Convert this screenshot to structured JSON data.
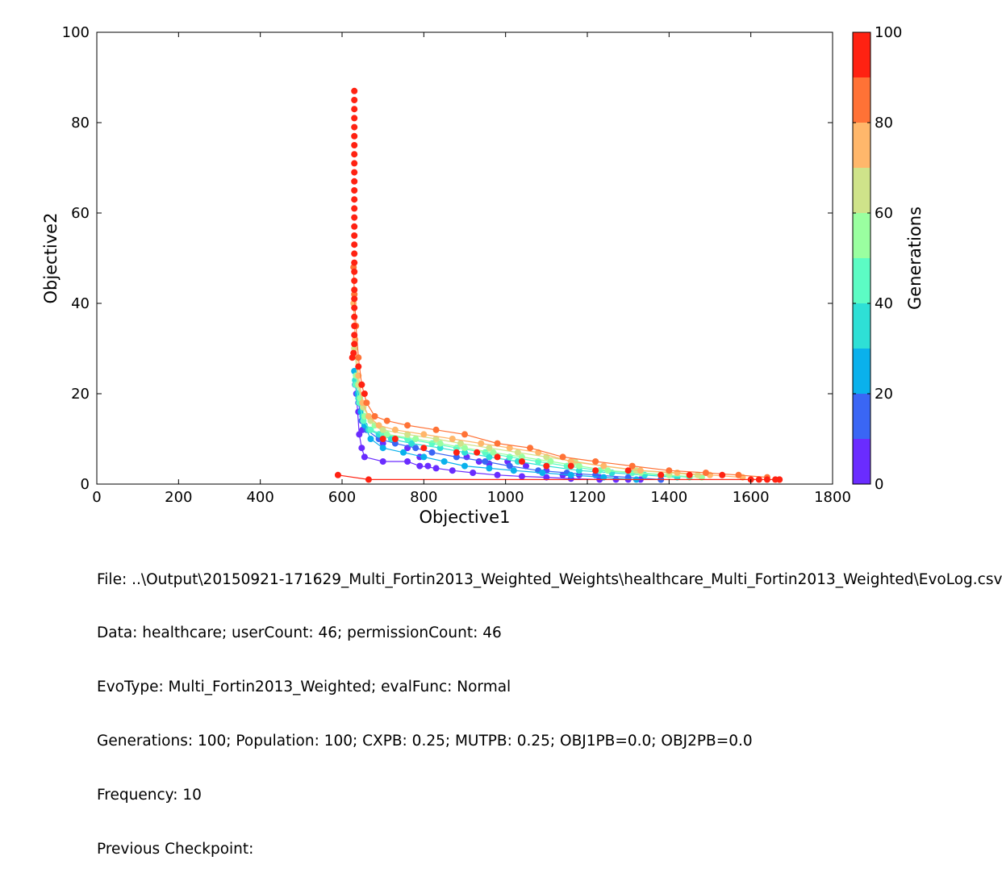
{
  "chart_data": {
    "type": "scatter",
    "xlabel": "Objective1",
    "ylabel": "Objective2",
    "xlim": [
      0,
      1800
    ],
    "ylim": [
      0,
      100
    ],
    "xticks": [
      0,
      200,
      400,
      600,
      800,
      1000,
      1200,
      1400,
      1600,
      1800
    ],
    "yticks": [
      0,
      20,
      40,
      60,
      80,
      100
    ],
    "grid": false,
    "colorbar": {
      "label": "Generations",
      "range": [
        0,
        100
      ],
      "ticks": [
        0,
        20,
        40,
        60,
        80,
        100
      ],
      "bins": [
        {
          "from": 0,
          "to": 10,
          "color": "#6a2cff"
        },
        {
          "from": 10,
          "to": 20,
          "color": "#3a66f5"
        },
        {
          "from": 20,
          "to": 30,
          "color": "#0ab1ec"
        },
        {
          "from": 30,
          "to": 40,
          "color": "#2ee0d6"
        },
        {
          "from": 40,
          "to": 50,
          "color": "#5cfcc4"
        },
        {
          "from": 50,
          "to": 60,
          "color": "#9affa0"
        },
        {
          "from": 60,
          "to": 70,
          "color": "#cfe38a"
        },
        {
          "from": 70,
          "to": 80,
          "color": "#ffb76b"
        },
        {
          "from": 80,
          "to": 90,
          "color": "#ff7236"
        },
        {
          "from": 90,
          "to": 100,
          "color": "#ff2212"
        }
      ]
    },
    "series": [
      {
        "generation": 5,
        "color": "#6a2cff",
        "line": true,
        "points": [
          [
            635,
            20
          ],
          [
            642,
            11
          ],
          [
            648,
            8
          ],
          [
            655,
            6
          ],
          [
            700,
            5
          ],
          [
            760,
            5
          ],
          [
            790,
            4
          ],
          [
            830,
            3.5
          ],
          [
            870,
            3
          ],
          [
            920,
            2.5
          ],
          [
            980,
            2
          ],
          [
            1040,
            1.7
          ],
          [
            1100,
            1.5
          ],
          [
            1160,
            1.2
          ],
          [
            1230,
            1
          ],
          [
            1300,
            1
          ]
        ]
      },
      {
        "generation": 12,
        "color": "#6a2cff",
        "line": false,
        "points": [
          [
            640,
            16
          ],
          [
            650,
            12
          ],
          [
            700,
            9
          ],
          [
            760,
            8
          ],
          [
            790,
            6
          ],
          [
            810,
            4
          ],
          [
            905,
            6
          ],
          [
            935,
            5
          ],
          [
            960,
            4.5
          ],
          [
            1005,
            5
          ],
          [
            1050,
            4
          ],
          [
            1100,
            3
          ],
          [
            1140,
            2
          ],
          [
            1180,
            2
          ],
          [
            1230,
            1.5
          ],
          [
            1270,
            1
          ],
          [
            1330,
            1
          ],
          [
            1380,
            1
          ]
        ]
      },
      {
        "generation": 15,
        "color": "#3a66f5",
        "line": true,
        "points": [
          [
            632,
            22
          ],
          [
            640,
            18
          ],
          [
            648,
            14
          ],
          [
            660,
            12
          ],
          [
            690,
            10
          ],
          [
            730,
            9
          ],
          [
            780,
            8
          ],
          [
            820,
            7
          ],
          [
            880,
            6
          ],
          [
            950,
            5
          ],
          [
            1010,
            4
          ],
          [
            1080,
            3
          ],
          [
            1150,
            2.5
          ],
          [
            1220,
            2
          ],
          [
            1300,
            1.5
          ],
          [
            1380,
            1
          ]
        ]
      },
      {
        "generation": 25,
        "color": "#0ab1ec",
        "line": true,
        "points": [
          [
            630,
            25
          ],
          [
            638,
            20
          ],
          [
            646,
            16
          ],
          [
            655,
            13
          ],
          [
            670,
            10
          ],
          [
            700,
            8
          ],
          [
            750,
            7
          ],
          [
            800,
            6
          ],
          [
            850,
            5
          ],
          [
            900,
            4
          ],
          [
            960,
            3.5
          ],
          [
            1020,
            3
          ],
          [
            1090,
            2.5
          ],
          [
            1160,
            2
          ],
          [
            1240,
            1.5
          ],
          [
            1320,
            1
          ]
        ]
      },
      {
        "generation": 35,
        "color": "#2ee0d6",
        "line": true,
        "points": [
          [
            632,
            23
          ],
          [
            640,
            19
          ],
          [
            650,
            15
          ],
          [
            665,
            12
          ],
          [
            690,
            11
          ],
          [
            720,
            10
          ],
          [
            770,
            9
          ],
          [
            840,
            8
          ],
          [
            900,
            7
          ],
          [
            960,
            6
          ],
          [
            1030,
            5
          ],
          [
            1100,
            4
          ],
          [
            1180,
            3
          ],
          [
            1260,
            2.5
          ],
          [
            1340,
            2
          ],
          [
            1420,
            1.5
          ]
        ]
      },
      {
        "generation": 45,
        "color": "#5cfcc4",
        "line": true,
        "points": [
          [
            633,
            22
          ],
          [
            642,
            18
          ],
          [
            652,
            14
          ],
          [
            670,
            12
          ],
          [
            700,
            11
          ],
          [
            760,
            10
          ],
          [
            820,
            9
          ],
          [
            880,
            8
          ],
          [
            950,
            7
          ],
          [
            1010,
            6
          ],
          [
            1080,
            5
          ],
          [
            1150,
            4
          ],
          [
            1230,
            3
          ],
          [
            1310,
            2.5
          ],
          [
            1380,
            2
          ],
          [
            1450,
            1.5
          ]
        ]
      },
      {
        "generation": 55,
        "color": "#9affa0",
        "line": true,
        "points": [
          [
            634,
            24
          ],
          [
            644,
            19
          ],
          [
            655,
            15
          ],
          [
            680,
            13
          ],
          [
            710,
            11
          ],
          [
            780,
            10
          ],
          [
            840,
            9
          ],
          [
            900,
            8
          ],
          [
            970,
            7
          ],
          [
            1040,
            6
          ],
          [
            1110,
            5
          ],
          [
            1180,
            4
          ],
          [
            1250,
            3
          ],
          [
            1330,
            2.5
          ],
          [
            1400,
            2
          ],
          [
            1480,
            1.5
          ]
        ]
      },
      {
        "generation": 65,
        "color": "#cfe38a",
        "line": true,
        "points": [
          [
            630,
            30
          ],
          [
            640,
            22
          ],
          [
            652,
            17
          ],
          [
            670,
            14
          ],
          [
            700,
            12
          ],
          [
            760,
            11
          ],
          [
            830,
            10
          ],
          [
            890,
            9
          ],
          [
            960,
            8
          ],
          [
            1030,
            7
          ],
          [
            1100,
            6
          ],
          [
            1170,
            5
          ],
          [
            1240,
            4
          ],
          [
            1320,
            3
          ],
          [
            1400,
            2.5
          ],
          [
            1470,
            2
          ]
        ]
      },
      {
        "generation": 75,
        "color": "#ffb76b",
        "line": true,
        "points": [
          [
            628,
            40
          ],
          [
            632,
            32
          ],
          [
            640,
            24
          ],
          [
            650,
            18
          ],
          [
            665,
            15
          ],
          [
            690,
            13
          ],
          [
            730,
            12
          ],
          [
            800,
            11
          ],
          [
            870,
            10
          ],
          [
            940,
            9
          ],
          [
            1010,
            8
          ],
          [
            1080,
            7
          ],
          [
            1160,
            5
          ],
          [
            1240,
            4
          ],
          [
            1330,
            3
          ],
          [
            1420,
            2.5
          ],
          [
            1500,
            2
          ],
          [
            1580,
            1.5
          ]
        ]
      },
      {
        "generation": 85,
        "color": "#ff7236",
        "line": true,
        "points": [
          [
            628,
            48
          ],
          [
            630,
            42
          ],
          [
            634,
            35
          ],
          [
            640,
            28
          ],
          [
            648,
            22
          ],
          [
            660,
            18
          ],
          [
            680,
            15
          ],
          [
            710,
            14
          ],
          [
            760,
            13
          ],
          [
            830,
            12
          ],
          [
            900,
            11
          ],
          [
            980,
            9
          ],
          [
            1060,
            8
          ],
          [
            1140,
            6
          ],
          [
            1220,
            5
          ],
          [
            1310,
            4
          ],
          [
            1400,
            3
          ],
          [
            1490,
            2.5
          ],
          [
            1570,
            2
          ],
          [
            1640,
            1.5
          ]
        ]
      },
      {
        "generation": 95,
        "color": "#ff2212",
        "line": true,
        "points": [
          [
            590,
            2
          ],
          [
            665,
            1
          ],
          [
            1670,
            1
          ]
        ]
      },
      {
        "generation": 95,
        "color": "#ff2212",
        "line": false,
        "points": [
          [
            630,
            87
          ],
          [
            630,
            85
          ],
          [
            630,
            83
          ],
          [
            630,
            81
          ],
          [
            630,
            79
          ],
          [
            630,
            77
          ],
          [
            630,
            75
          ],
          [
            630,
            73
          ],
          [
            630,
            71
          ],
          [
            630,
            69
          ],
          [
            630,
            67
          ],
          [
            630,
            65
          ],
          [
            630,
            63
          ],
          [
            630,
            61
          ],
          [
            630,
            59
          ],
          [
            630,
            57
          ],
          [
            630,
            55
          ],
          [
            630,
            53
          ],
          [
            630,
            51
          ],
          [
            630,
            49
          ],
          [
            630,
            47
          ],
          [
            630,
            45
          ],
          [
            630,
            43
          ],
          [
            630,
            41
          ],
          [
            630,
            39
          ],
          [
            630,
            37
          ],
          [
            630,
            35
          ],
          [
            630,
            33
          ],
          [
            630,
            31
          ],
          [
            628,
            29
          ],
          [
            625,
            28
          ],
          [
            640,
            26
          ],
          [
            648,
            22
          ],
          [
            655,
            20
          ],
          [
            700,
            10
          ],
          [
            730,
            10
          ],
          [
            800,
            8
          ],
          [
            880,
            7
          ],
          [
            930,
            7
          ],
          [
            980,
            6
          ],
          [
            1040,
            5
          ],
          [
            1100,
            4
          ],
          [
            1160,
            4
          ],
          [
            1220,
            3
          ],
          [
            1300,
            3
          ],
          [
            1380,
            2
          ],
          [
            1450,
            2
          ],
          [
            1530,
            2
          ],
          [
            1600,
            1
          ],
          [
            1620,
            1
          ],
          [
            1640,
            1
          ],
          [
            1660,
            1
          ],
          [
            1670,
            1
          ]
        ]
      }
    ]
  },
  "footer": {
    "file": "File: ..\\Output\\20150921-171629_Multi_Fortin2013_Weighted_Weights\\healthcare_Multi_Fortin2013_Weighted\\EvoLog.csv",
    "data": "Data: healthcare; userCount: 46; permissionCount: 46",
    "evotype": "EvoType: Multi_Fortin2013_Weighted; evalFunc: Normal",
    "params": "Generations: 100; Population: 100; CXPB: 0.25; MUTPB: 0.25; OBJ1PB=0.0; OBJ2PB=0.0",
    "frequency": "Frequency: 10",
    "checkpoint": "Previous Checkpoint:"
  }
}
